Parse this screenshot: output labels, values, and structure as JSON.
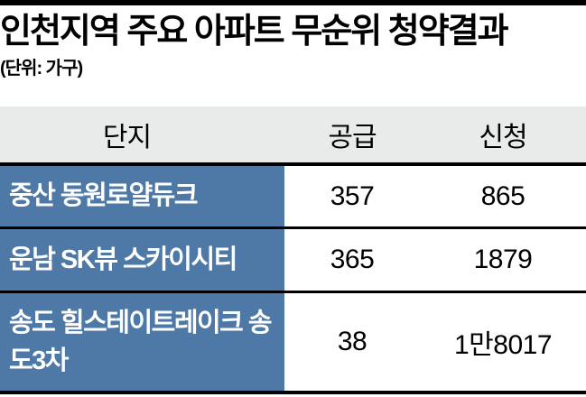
{
  "header": {
    "title": "인천지역 주요 아파트 무순위 청약결과",
    "unit_note": "(단위: 가구)"
  },
  "chart_data": {
    "type": "table",
    "title": "인천지역 주요 아파트 무순위 청약결과",
    "unit": "(단위: 가구)",
    "columns": [
      "단지",
      "공급",
      "신청"
    ],
    "rows": [
      [
        "중산 동원로얄듀크",
        "357",
        "865"
      ],
      [
        "운남 SK뷰 스카이시티",
        "365",
        "1879"
      ],
      [
        "송도 힐스테이트레이크 송도3차",
        "38",
        "1만8017"
      ]
    ],
    "values_numeric": {
      "supply": [
        357,
        365,
        38
      ],
      "applications": [
        865,
        1879,
        18017
      ]
    }
  },
  "colors": {
    "label_column_bg": "#4E79A6",
    "header_row_bg": "#E9EBEB",
    "rule": "#000000",
    "label_text": "#FFFFFF"
  }
}
